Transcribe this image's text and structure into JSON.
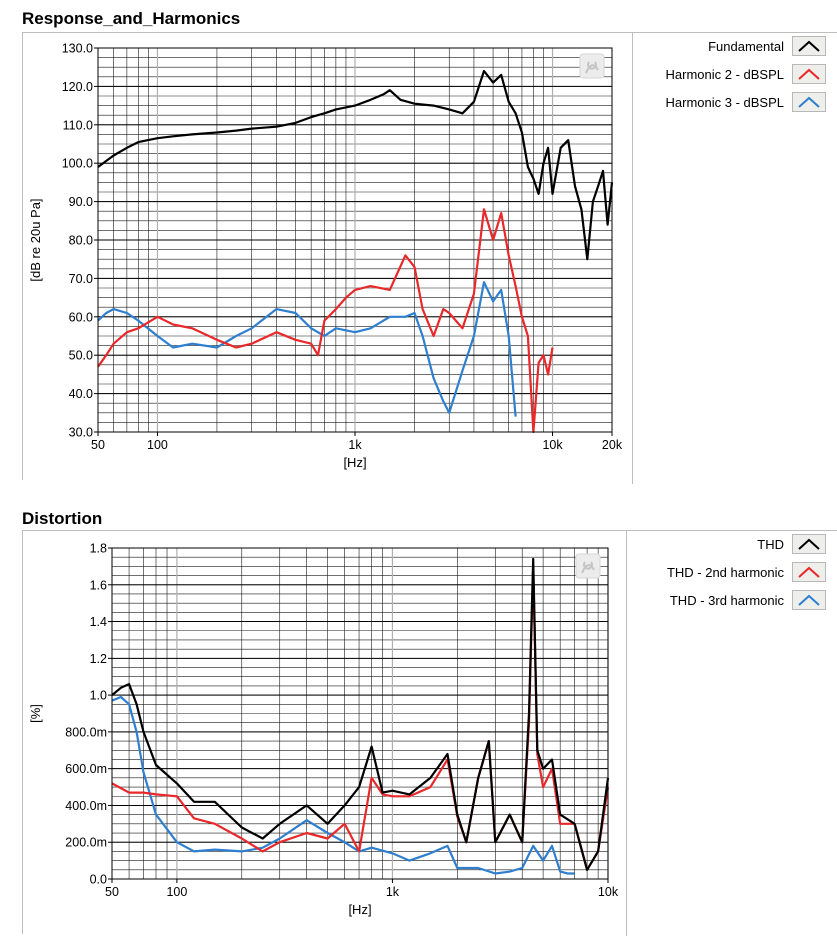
{
  "chart_data": [
    {
      "type": "line",
      "title": "Response_and_Harmonics",
      "xlabel": "[Hz]",
      "ylabel": "[dB re 20u Pa]",
      "x_scale": "log",
      "xlim": [
        50,
        20000
      ],
      "ylim": [
        30,
        130
      ],
      "xticks": [
        50,
        100,
        1000,
        10000,
        20000
      ],
      "xtick_labels": [
        "50",
        "100",
        "1k",
        "10k",
        "20k"
      ],
      "yticks": [
        30,
        40,
        50,
        60,
        70,
        80,
        90,
        100,
        110,
        120,
        130
      ],
      "ytick_labels": [
        "30.0",
        "40.0",
        "50.0",
        "60.0",
        "70.0",
        "80.0",
        "90.0",
        "100.0",
        "110.0",
        "120.0",
        "130.0"
      ],
      "grid": true,
      "legend_position": "right",
      "series": [
        {
          "name": "Fundamental",
          "color": "#000000",
          "x": [
            50,
            60,
            70,
            80,
            100,
            120,
            150,
            200,
            250,
            300,
            400,
            500,
            600,
            700,
            800,
            1000,
            1200,
            1400,
            1500,
            1700,
            2000,
            2500,
            3000,
            3500,
            4000,
            4500,
            5000,
            5500,
            6000,
            6500,
            7000,
            7500,
            8000,
            8500,
            9000,
            9500,
            10000,
            11000,
            12000,
            13000,
            14000,
            15000,
            16000,
            17000,
            18000,
            19000,
            20000
          ],
          "y": [
            99,
            102,
            104,
            105.5,
            106.5,
            107,
            107.5,
            108,
            108.5,
            109,
            109.5,
            110.5,
            112,
            113,
            114,
            115,
            116.5,
            118,
            119,
            116.5,
            115.5,
            115,
            114,
            113,
            116,
            124,
            121,
            123,
            116,
            113,
            108,
            99,
            96,
            92,
            100,
            104,
            92,
            104,
            106,
            94,
            88,
            75,
            90,
            94,
            98,
            84,
            95
          ]
        },
        {
          "name": "Harmonic 2 - dBSPL",
          "color": "#e8282a",
          "x": [
            50,
            55,
            60,
            70,
            80,
            100,
            120,
            150,
            200,
            250,
            300,
            400,
            500,
            600,
            650,
            700,
            800,
            900,
            1000,
            1200,
            1500,
            1800,
            2000,
            2200,
            2500,
            2800,
            3000,
            3500,
            4000,
            4500,
            5000,
            5500,
            6000,
            6500,
            7000,
            7500,
            8000,
            8500,
            9000,
            9500,
            10000
          ],
          "y": [
            47,
            50,
            53,
            56,
            57,
            60,
            58,
            57,
            54,
            52,
            53,
            56,
            54,
            53,
            50,
            59,
            62,
            65,
            67,
            68,
            67,
            76,
            73,
            62,
            55,
            62,
            61,
            57,
            66,
            88,
            80,
            87,
            76,
            68,
            60,
            55,
            30,
            48,
            50,
            45,
            52
          ]
        },
        {
          "name": "Harmonic 3 - dBSPL",
          "color": "#2f7fd0",
          "x": [
            50,
            55,
            60,
            70,
            80,
            100,
            120,
            150,
            200,
            250,
            300,
            400,
            500,
            600,
            700,
            800,
            1000,
            1200,
            1500,
            1800,
            2000,
            2200,
            2500,
            2800,
            3000,
            3500,
            4000,
            4500,
            5000,
            5500,
            6000,
            6500
          ],
          "y": [
            59,
            61,
            62,
            61,
            59,
            55,
            52,
            53,
            52,
            55,
            57,
            62,
            61,
            57,
            55,
            57,
            56,
            57,
            60,
            60,
            61,
            55,
            44,
            38,
            35,
            46,
            55,
            69,
            64,
            67,
            55,
            34
          ]
        }
      ]
    },
    {
      "type": "line",
      "title": "Distortion",
      "xlabel": "[Hz]",
      "ylabel": "[%]",
      "x_scale": "log",
      "xlim": [
        50,
        10000
      ],
      "ylim": [
        0,
        1.8
      ],
      "xticks": [
        50,
        100,
        1000,
        10000
      ],
      "xtick_labels": [
        "50",
        "100",
        "1k",
        "10k"
      ],
      "yticks": [
        0,
        0.2,
        0.4,
        0.6,
        0.8,
        1.0,
        1.2,
        1.4,
        1.6,
        1.8
      ],
      "ytick_labels": [
        "0.0",
        "200.0m",
        "400.0m",
        "600.0m",
        "800.0m",
        "1.0",
        "1.2",
        "1.4",
        "1.6",
        "1.8"
      ],
      "grid": true,
      "legend_position": "right",
      "series": [
        {
          "name": "THD",
          "color": "#000000",
          "x": [
            50,
            55,
            60,
            65,
            70,
            80,
            100,
            120,
            150,
            200,
            250,
            300,
            400,
            500,
            600,
            700,
            800,
            900,
            1000,
            1200,
            1500,
            1800,
            2000,
            2200,
            2500,
            2800,
            3000,
            3500,
            4000,
            4300,
            4500,
            4700,
            5000,
            5500,
            6000,
            7000,
            8000,
            9000,
            10000
          ],
          "y": [
            1.0,
            1.04,
            1.06,
            0.95,
            0.8,
            0.62,
            0.52,
            0.42,
            0.42,
            0.28,
            0.22,
            0.3,
            0.4,
            0.3,
            0.4,
            0.5,
            0.72,
            0.47,
            0.48,
            0.46,
            0.55,
            0.68,
            0.35,
            0.2,
            0.55,
            0.75,
            0.2,
            0.35,
            0.2,
            0.9,
            1.74,
            0.7,
            0.6,
            0.65,
            0.35,
            0.3,
            0.05,
            0.15,
            0.55
          ]
        },
        {
          "name": "THD - 2nd harmonic",
          "color": "#e8282a",
          "x": [
            50,
            60,
            70,
            80,
            100,
            120,
            150,
            200,
            250,
            300,
            400,
            500,
            600,
            700,
            800,
            900,
            1000,
            1200,
            1500,
            1800,
            2000,
            2200,
            2500,
            2800,
            3000,
            3500,
            4000,
            4300,
            4500,
            4700,
            5000,
            5500,
            6000,
            7000,
            8000,
            9000,
            10000
          ],
          "y": [
            0.52,
            0.47,
            0.47,
            0.46,
            0.45,
            0.33,
            0.3,
            0.22,
            0.15,
            0.2,
            0.25,
            0.22,
            0.3,
            0.15,
            0.55,
            0.46,
            0.45,
            0.45,
            0.5,
            0.65,
            0.34,
            0.2,
            0.55,
            0.75,
            0.2,
            0.35,
            0.2,
            0.85,
            1.7,
            0.68,
            0.5,
            0.6,
            0.3,
            0.3,
            0.05,
            0.15,
            0.5
          ]
        },
        {
          "name": "THD - 3rd harmonic",
          "color": "#2f7fd0",
          "x": [
            50,
            55,
            60,
            65,
            70,
            80,
            100,
            120,
            150,
            200,
            250,
            300,
            400,
            500,
            600,
            700,
            800,
            1000,
            1200,
            1500,
            1800,
            2000,
            2500,
            3000,
            3500,
            4000,
            4500,
            5000,
            5500,
            6000,
            6500,
            7000
          ],
          "y": [
            0.97,
            0.99,
            0.95,
            0.8,
            0.58,
            0.35,
            0.2,
            0.15,
            0.16,
            0.15,
            0.17,
            0.22,
            0.32,
            0.25,
            0.2,
            0.15,
            0.17,
            0.14,
            0.1,
            0.14,
            0.18,
            0.06,
            0.06,
            0.03,
            0.04,
            0.06,
            0.18,
            0.1,
            0.18,
            0.04,
            0.03,
            0.03
          ]
        }
      ]
    }
  ]
}
